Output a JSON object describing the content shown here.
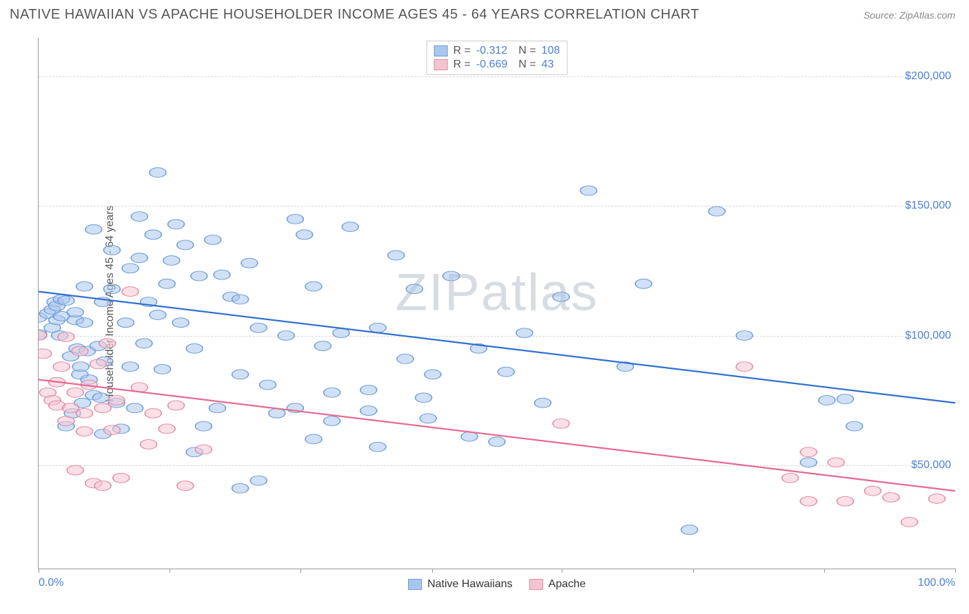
{
  "header": {
    "title": "NATIVE HAWAIIAN VS APACHE HOUSEHOLDER INCOME AGES 45 - 64 YEARS CORRELATION CHART",
    "source": "Source: ZipAtlas.com"
  },
  "watermark": "ZIPatlas",
  "chart": {
    "type": "scatter",
    "ylabel": "Householder Income Ages 45 - 64 years",
    "xlim": [
      0,
      100
    ],
    "ylim": [
      10000,
      215000
    ],
    "y_ticks": [
      50000,
      100000,
      150000,
      200000
    ],
    "y_tick_labels": [
      "$50,000",
      "$100,000",
      "$150,000",
      "$200,000"
    ],
    "x_minor_ticks": [
      0,
      14.3,
      28.6,
      42.9,
      57.1,
      71.4,
      85.7,
      100
    ],
    "x_tick_labels": {
      "left": "0.0%",
      "right": "100.0%"
    },
    "grid_color": "#d5d5d5",
    "background_color": "#ffffff",
    "axis_color": "#999999",
    "tick_label_color": "#4a7fd8",
    "label_color": "#555555",
    "marker_radius": 9,
    "marker_opacity": 0.55,
    "line_width": 2.2,
    "series": [
      {
        "name": "Native Hawaiians",
        "marker_fill": "#a9c6ec",
        "marker_stroke": "#6f9cd9",
        "line_color": "#2f6fd0",
        "R": "-0.312",
        "N": "108",
        "regression": {
          "x1": 0,
          "y1": 117000,
          "x2": 100,
          "y2": 74000
        },
        "points": [
          [
            0,
            100500
          ],
          [
            0,
            107000
          ],
          [
            1,
            108500
          ],
          [
            1.5,
            110000
          ],
          [
            1.5,
            103000
          ],
          [
            1.8,
            113000
          ],
          [
            2,
            106000
          ],
          [
            2,
            111500
          ],
          [
            2.3,
            100000
          ],
          [
            2.5,
            114000
          ],
          [
            2.5,
            107500
          ],
          [
            3,
            113500
          ],
          [
            3,
            65000
          ],
          [
            3.5,
            92000
          ],
          [
            3.7,
            70000
          ],
          [
            4,
            106000
          ],
          [
            4,
            109000
          ],
          [
            4.2,
            95000
          ],
          [
            4.5,
            85000
          ],
          [
            4.6,
            88000
          ],
          [
            4.8,
            74000
          ],
          [
            5,
            105000
          ],
          [
            5,
            119000
          ],
          [
            5.3,
            94000
          ],
          [
            5.5,
            83000
          ],
          [
            6,
            141000
          ],
          [
            6,
            77000
          ],
          [
            6.5,
            96000
          ],
          [
            6.8,
            76000
          ],
          [
            7,
            113000
          ],
          [
            7,
            62000
          ],
          [
            7.2,
            90000
          ],
          [
            8,
            133000
          ],
          [
            8,
            118000
          ],
          [
            8.5,
            74000
          ],
          [
            9,
            64000
          ],
          [
            9.5,
            105000
          ],
          [
            10,
            126000
          ],
          [
            10,
            88000
          ],
          [
            10.5,
            72000
          ],
          [
            11,
            146000
          ],
          [
            11,
            130000
          ],
          [
            11.5,
            97000
          ],
          [
            12,
            113000
          ],
          [
            12.5,
            139000
          ],
          [
            13,
            163000
          ],
          [
            13,
            108000
          ],
          [
            13.5,
            87000
          ],
          [
            14,
            120000
          ],
          [
            14.5,
            129000
          ],
          [
            15,
            143000
          ],
          [
            15.5,
            105000
          ],
          [
            16,
            135000
          ],
          [
            17,
            95000
          ],
          [
            17,
            55000
          ],
          [
            17.5,
            123000
          ],
          [
            18,
            65000
          ],
          [
            19,
            137000
          ],
          [
            19.5,
            72000
          ],
          [
            20,
            123500
          ],
          [
            21,
            115000
          ],
          [
            22,
            114000
          ],
          [
            22,
            85000
          ],
          [
            22,
            41000
          ],
          [
            23,
            128000
          ],
          [
            24,
            103000
          ],
          [
            24,
            44000
          ],
          [
            25,
            81000
          ],
          [
            26,
            70000
          ],
          [
            27,
            100000
          ],
          [
            28,
            145000
          ],
          [
            28,
            72000
          ],
          [
            29,
            139000
          ],
          [
            30,
            119000
          ],
          [
            30,
            60000
          ],
          [
            31,
            96000
          ],
          [
            32,
            78000
          ],
          [
            32,
            67000
          ],
          [
            33,
            101000
          ],
          [
            34,
            142000
          ],
          [
            36,
            71000
          ],
          [
            36,
            79000
          ],
          [
            37,
            103000
          ],
          [
            37,
            57000
          ],
          [
            39,
            131000
          ],
          [
            40,
            91000
          ],
          [
            41,
            118000
          ],
          [
            42,
            76000
          ],
          [
            42.5,
            68000
          ],
          [
            43,
            85000
          ],
          [
            45,
            123000
          ],
          [
            47,
            61000
          ],
          [
            48,
            95000
          ],
          [
            50,
            59000
          ],
          [
            51,
            86000
          ],
          [
            53,
            101000
          ],
          [
            55,
            74000
          ],
          [
            57,
            115000
          ],
          [
            60,
            156000
          ],
          [
            64,
            88000
          ],
          [
            66,
            120000
          ],
          [
            71,
            25000
          ],
          [
            74,
            148000
          ],
          [
            77,
            100000
          ],
          [
            84,
            51000
          ],
          [
            86,
            75000
          ],
          [
            88,
            75500
          ],
          [
            89,
            65000
          ]
        ]
      },
      {
        "name": "Apache",
        "marker_fill": "#f5c4d2",
        "marker_stroke": "#e18aa5",
        "line_color": "#e56a8f",
        "R": "-0.669",
        "N": "43",
        "regression": {
          "x1": 0,
          "y1": 83000,
          "x2": 100,
          "y2": 40000
        },
        "points": [
          [
            0,
            100000
          ],
          [
            0.5,
            93000
          ],
          [
            1,
            78000
          ],
          [
            1.5,
            75000
          ],
          [
            2,
            82000
          ],
          [
            2,
            73000
          ],
          [
            2.5,
            88000
          ],
          [
            3,
            67000
          ],
          [
            3,
            99500
          ],
          [
            3.5,
            72000
          ],
          [
            4,
            78000
          ],
          [
            4,
            48000
          ],
          [
            4.5,
            94000
          ],
          [
            5,
            70000
          ],
          [
            5,
            63000
          ],
          [
            5.5,
            81000
          ],
          [
            6,
            43000
          ],
          [
            6.5,
            89000
          ],
          [
            7,
            72000
          ],
          [
            7,
            42000
          ],
          [
            7.5,
            97000
          ],
          [
            8,
            63500
          ],
          [
            8.5,
            75000
          ],
          [
            9,
            45000
          ],
          [
            10,
            117000
          ],
          [
            11,
            80000
          ],
          [
            12,
            58000
          ],
          [
            12.5,
            70000
          ],
          [
            14,
            64000
          ],
          [
            15,
            73000
          ],
          [
            16,
            42000
          ],
          [
            18,
            56000
          ],
          [
            57,
            66000
          ],
          [
            77,
            88000
          ],
          [
            82,
            45000
          ],
          [
            84,
            36000
          ],
          [
            84,
            55000
          ],
          [
            87,
            51000
          ],
          [
            88,
            36000
          ],
          [
            91,
            40000
          ],
          [
            93,
            37500
          ],
          [
            95,
            28000
          ],
          [
            98,
            37000
          ]
        ]
      }
    ],
    "legend_top": {
      "border_color": "#cccccc",
      "rows": [
        {
          "swatch_fill": "#a9c6ec",
          "swatch_stroke": "#6f9cd9"
        },
        {
          "swatch_fill": "#f5c4d2",
          "swatch_stroke": "#e18aa5"
        }
      ]
    },
    "legend_bottom": {
      "items": [
        {
          "label": "Native Hawaiians",
          "swatch_fill": "#a9c6ec",
          "swatch_stroke": "#6f9cd9"
        },
        {
          "label": "Apache",
          "swatch_fill": "#f5c4d2",
          "swatch_stroke": "#e18aa5"
        }
      ]
    }
  }
}
